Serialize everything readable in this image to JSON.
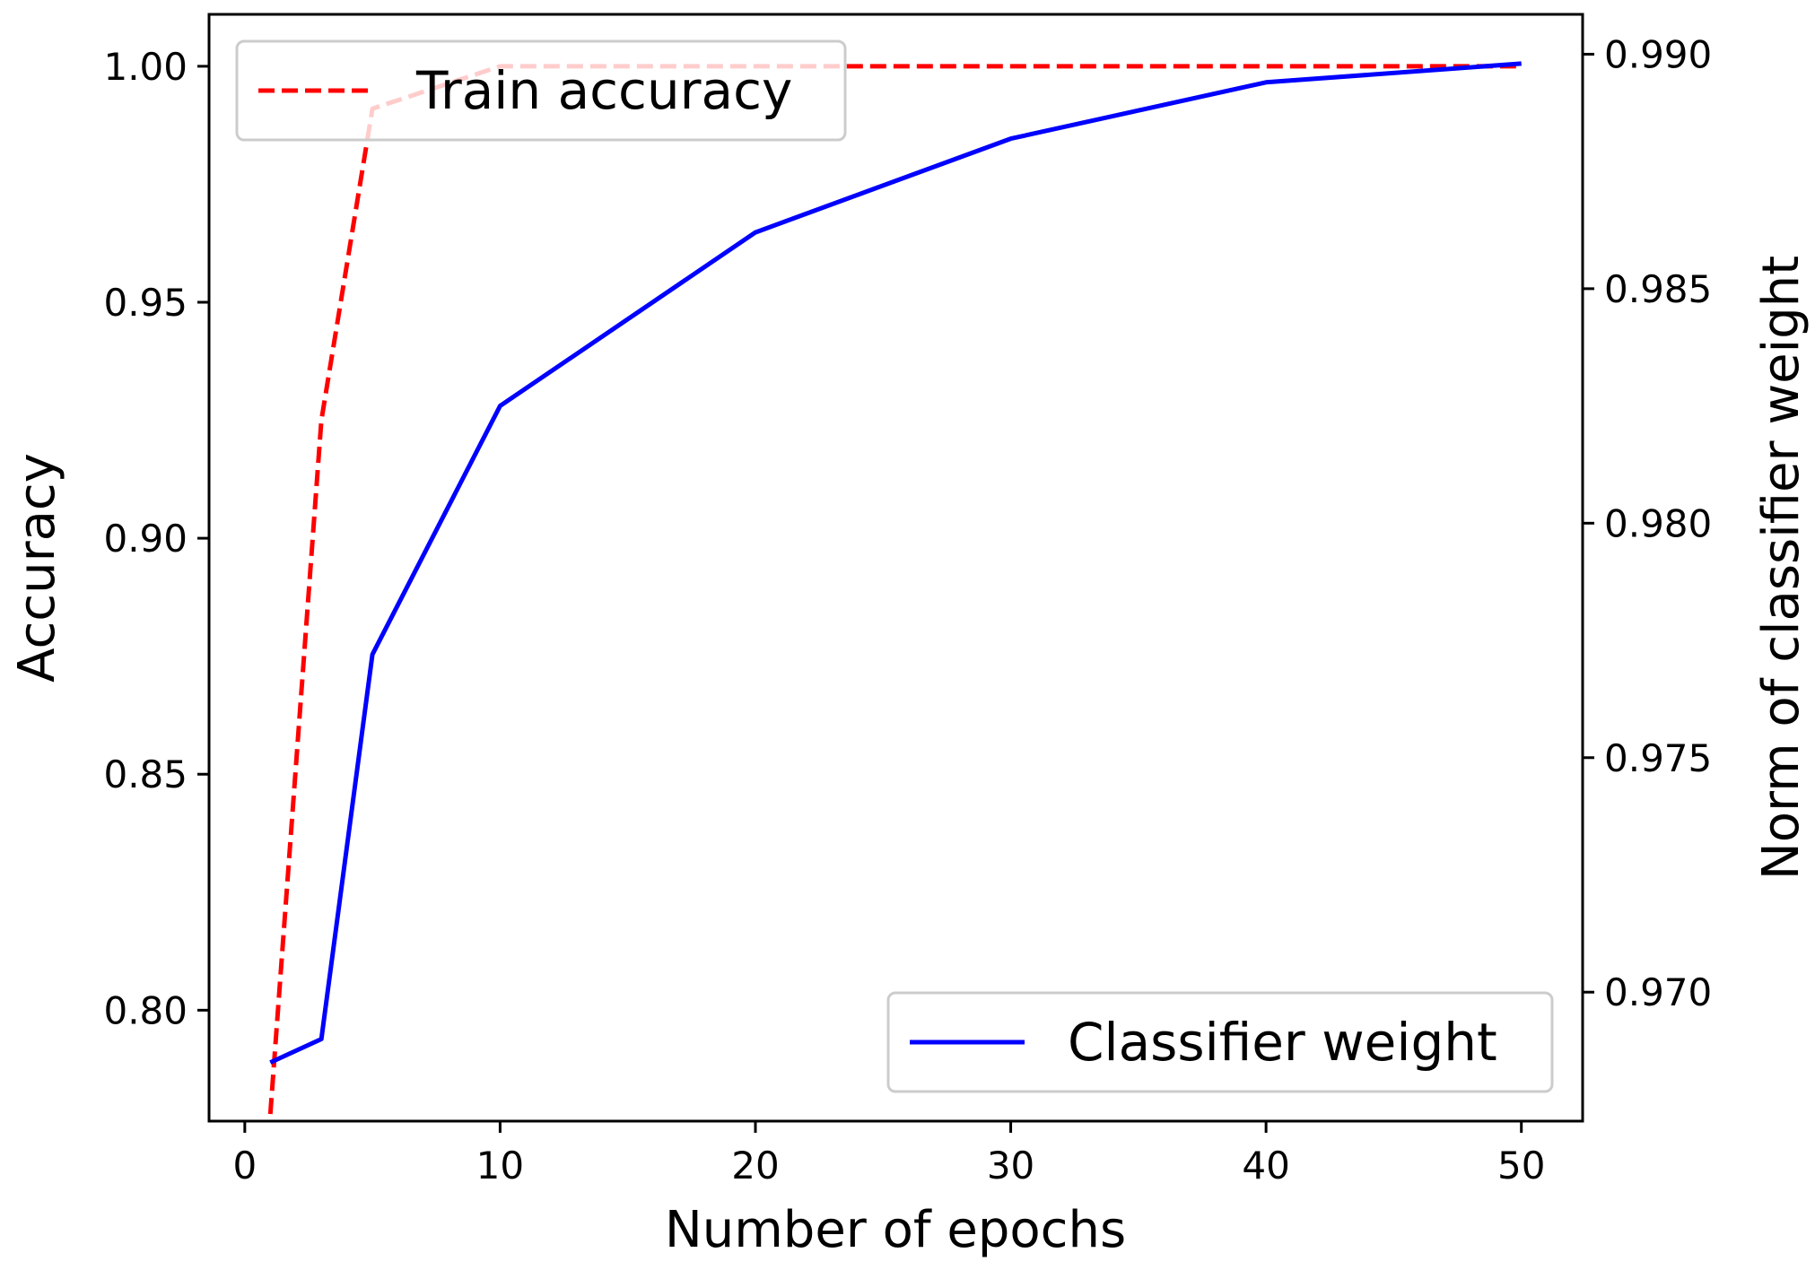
{
  "chart_data": {
    "type": "line",
    "title": "",
    "xlabel": "Number of epochs",
    "ylabel": "Accuracy",
    "ylabel_right": "Norm of classifier weight",
    "xlim": [
      -1.4,
      52.4
    ],
    "ylim": [
      0.7765,
      1.011
    ],
    "ylim_right": [
      0.96725,
      0.99085
    ],
    "xticks": [
      0,
      10,
      20,
      30,
      40,
      50
    ],
    "yticks": [
      0.8,
      0.85,
      0.9,
      0.95,
      1.0
    ],
    "yticks_right": [
      0.97,
      0.975,
      0.98,
      0.985,
      0.99
    ],
    "grid": false,
    "series": [
      {
        "name": "Train accuracy",
        "axis": "left",
        "color": "#ff0000",
        "linestyle": "dashed",
        "legend_position": "upper-left",
        "x": [
          1,
          3,
          5,
          10,
          20,
          30,
          40,
          50
        ],
        "y": [
          0.778,
          0.925,
          0.991,
          1.0,
          1.0,
          1.0,
          1.0,
          1.0
        ]
      },
      {
        "name": "Classifier weight",
        "axis": "right",
        "color": "#0000ff",
        "linestyle": "solid",
        "legend_position": "lower-right",
        "x": [
          1,
          3,
          5,
          10,
          20,
          30,
          40,
          50
        ],
        "y": [
          0.9685,
          0.969,
          0.9772,
          0.9825,
          0.9862,
          0.9882,
          0.9894,
          0.9898
        ]
      }
    ]
  }
}
